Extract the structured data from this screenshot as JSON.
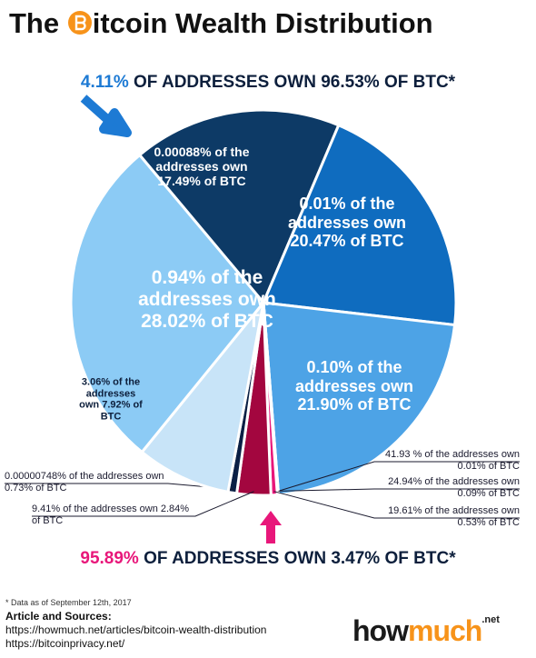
{
  "chart_data": {
    "type": "pie",
    "title": [
      "The",
      "itcoin Wealth Distribution"
    ],
    "top_annotation": {
      "highlight": "4.11%",
      "text": "OF ADDRESSES OWN 96.53% OF BTC*"
    },
    "bottom_annotation": {
      "highlight": "95.89%",
      "text": "OF ADDRESSES OWN 3.47% OF BTC*"
    },
    "categories": [
      "0.00088% of the addresses own 17.49% of BTC",
      "0.01% of the addresses own 20.47% of BTC",
      "0.10% of the addresses own 21.90% of BTC",
      "41.93 % of the addresses own 0.01% of BTC",
      "24.94% of the addresses own 0.09% of BTC",
      "19.61% of the addresses own 0.53% of BTC",
      "9.41% of the addresses own 2.84% of BTC",
      "0.00000748% of the addresses own 0.73% of BTC",
      "3.06% of the addresses own 7.92% of BTC",
      "0.94% of the addresses own 28.02% of BTC"
    ],
    "values": [
      17.49,
      20.47,
      21.9,
      0.01,
      0.09,
      0.53,
      2.84,
      0.73,
      7.92,
      28.02
    ],
    "colors": [
      "#0d3a66",
      "#0f6cbf",
      "#4da3e6",
      "#f7a8c8",
      "#f06aa0",
      "#e8177a",
      "#a3063f",
      "#0a1f45",
      "#c8e4f8",
      "#8ccbf5"
    ],
    "footnote": "* Data as of September 12th, 2017",
    "sources_heading": "Article and Sources:",
    "sources": [
      "https://howmuch.net/articles/bitcoin-wealth-distribution",
      "https://bitcoinprivacy.net/"
    ],
    "brand": [
      "how",
      "much",
      ".net"
    ]
  }
}
